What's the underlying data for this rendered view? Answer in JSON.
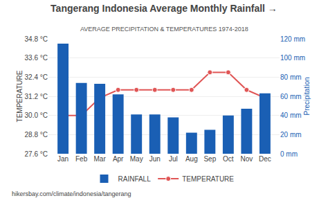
{
  "chart_data": {
    "type": "bar",
    "title": "Tangerang Indonesia Average Monthly Rainfall →",
    "subtitle": "AVERAGE PRECIPITATION & TEMPERATURES 1974-2018",
    "annotations": [
      "hikersbay.com/climate/indonesia/tangerang"
    ],
    "categories": [
      "Jan",
      "Feb",
      "Mar",
      "Apr",
      "May",
      "Jun",
      "Jul",
      "Aug",
      "Sep",
      "Oct",
      "Nov",
      "Dec"
    ],
    "series": [
      {
        "name": "TEMPERATURE",
        "type": "line",
        "marker": "circle",
        "color": "#e05555",
        "values": [
          30.0,
          30.0,
          31.1,
          31.6,
          31.6,
          31.6,
          31.6,
          31.6,
          32.7,
          32.7,
          31.6,
          31.1
        ]
      },
      {
        "name": "RAINFALL",
        "type": "bar",
        "axis": "y2",
        "color": "#1a5fb4",
        "values": [
          115,
          74,
          73,
          62,
          41,
          41,
          38,
          22,
          25,
          40,
          47,
          63
        ]
      }
    ],
    "ylabel": "TEMPERATURE",
    "y2label": "Precipitation",
    "ylim": [
      27.6,
      34.8
    ],
    "yticks": [
      {
        "value": 27.6,
        "label": "27.6 °C"
      },
      {
        "value": 28.8,
        "label": "28.8 °C"
      },
      {
        "value": 30.0,
        "label": "30.0 °C"
      },
      {
        "value": 31.2,
        "label": "31.2 °C"
      },
      {
        "value": 32.4,
        "label": "32.4 °C"
      },
      {
        "value": 33.6,
        "label": "33.6 °C"
      },
      {
        "value": 34.8,
        "label": "34.8 °C"
      }
    ],
    "y2lim": [
      0,
      120
    ],
    "y2ticks": [
      {
        "value": 0,
        "label": "0 mm"
      },
      {
        "value": 20,
        "label": "20 mm"
      },
      {
        "value": 40,
        "label": "40 mm"
      },
      {
        "value": 60,
        "label": "60 mm"
      },
      {
        "value": 80,
        "label": "80 mm"
      },
      {
        "value": 100,
        "label": "100 mm"
      },
      {
        "value": 120,
        "label": "120 mm"
      }
    ],
    "grid": true,
    "legend": "bottom"
  }
}
